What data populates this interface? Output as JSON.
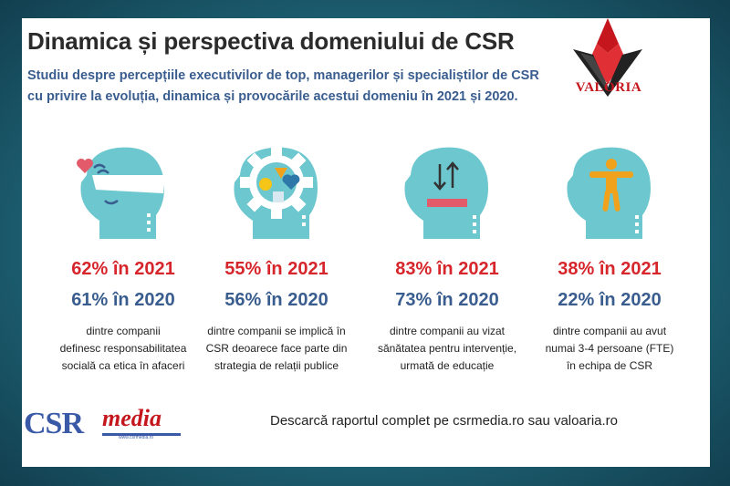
{
  "header": {
    "title": "Dinamica și perspectiva domeniului de CSR",
    "subtitle_line1": "Studiu despre percepțiile executivilor de top, managerilor și specialiștilor de CSR",
    "subtitle_line2": "cu privire la evoluția, dinamica și provocările acestui domeniu în 2021 și 2020."
  },
  "logo": {
    "text": "VALORIA",
    "color": "#c4161c"
  },
  "colors": {
    "head": "#6cc7cf",
    "red": "#d6262b",
    "blue": "#3a5d8f",
    "accent_orange": "#f0a21c",
    "accent_pink": "#e35a6a"
  },
  "stats": [
    {
      "icon": "head-heart-visor-icon",
      "pct_2021": "62% în 2021",
      "pct_2020": "61% în 2020",
      "desc_lines": [
        "dintre companii",
        "definesc responsabilitatea",
        "socială ca etica în afaceri"
      ]
    },
    {
      "icon": "head-gear-shapes-icon",
      "pct_2021": "55% în 2021",
      "pct_2020": "56% în 2020",
      "desc_lines": [
        "dintre companii se implică în",
        "CSR deoarece face parte din",
        "strategia de relații publice"
      ]
    },
    {
      "icon": "head-arrows-icon",
      "pct_2021": "83% în 2021",
      "pct_2020": "73% în 2020",
      "desc_lines": [
        "dintre companii au vizat",
        "sănătatea pentru intervenție,",
        "urmată de educație"
      ]
    },
    {
      "icon": "head-person-icon",
      "pct_2021": "38% în 2021",
      "pct_2020": "22% în 2020",
      "desc_lines": [
        "dintre companii au avut",
        "numai 3-4 persoane (FTE)",
        "în echipa de CSR"
      ]
    }
  ],
  "footer": {
    "logo_main": "CSR",
    "logo_accent": "media",
    "logo_url": "www.csrmedia.ro",
    "download_text": "Descarcă raportul complet pe csrmedia.ro sau valoaria.ro"
  }
}
